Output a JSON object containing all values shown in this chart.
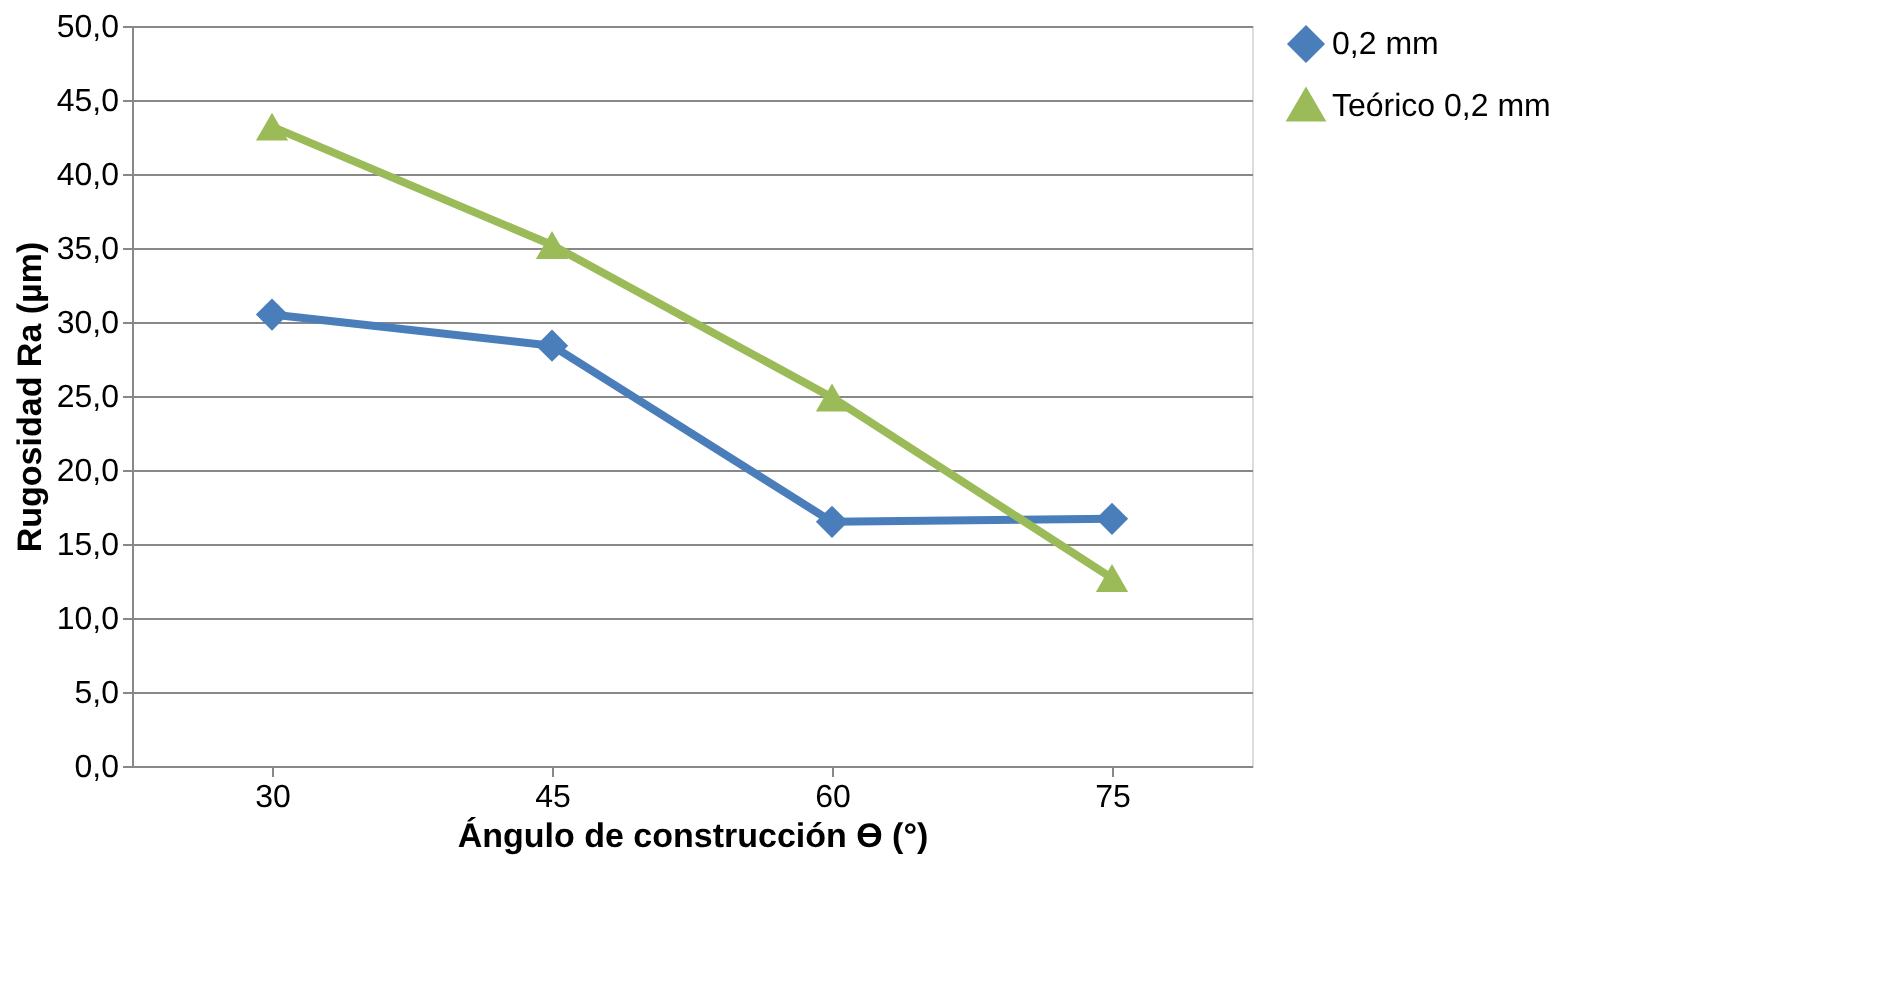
{
  "chart_data": {
    "type": "line",
    "xlabel": "Ángulo de construcción ϴ (°)",
    "ylabel": "Rugosidad Ra (µm)",
    "categories": [
      "30",
      "45",
      "60",
      "75"
    ],
    "series": [
      {
        "name": "0,2 mm",
        "color": "#4a7ebb",
        "marker": "diamond",
        "values": [
          30.5,
          28.4,
          16.5,
          16.7
        ]
      },
      {
        "name": "Teórico 0,2 mm",
        "color": "#9bbb59",
        "marker": "triangle",
        "values": [
          43.2,
          35.2,
          24.9,
          12.7
        ]
      }
    ],
    "ylim": [
      0,
      50
    ],
    "yticks": [
      {
        "value": 0,
        "label": "0,0"
      },
      {
        "value": 5,
        "label": "5,0"
      },
      {
        "value": 10,
        "label": "10,0"
      },
      {
        "value": 15,
        "label": "15,0"
      },
      {
        "value": 20,
        "label": "20,0"
      },
      {
        "value": 25,
        "label": "25,0"
      },
      {
        "value": 30,
        "label": "30,0"
      },
      {
        "value": 35,
        "label": "35,0"
      },
      {
        "value": 40,
        "label": "40,0"
      },
      {
        "value": 45,
        "label": "45,0"
      },
      {
        "value": 50,
        "label": "50,0"
      }
    ],
    "grid": "y",
    "legend": "right",
    "line_style": "solid"
  }
}
